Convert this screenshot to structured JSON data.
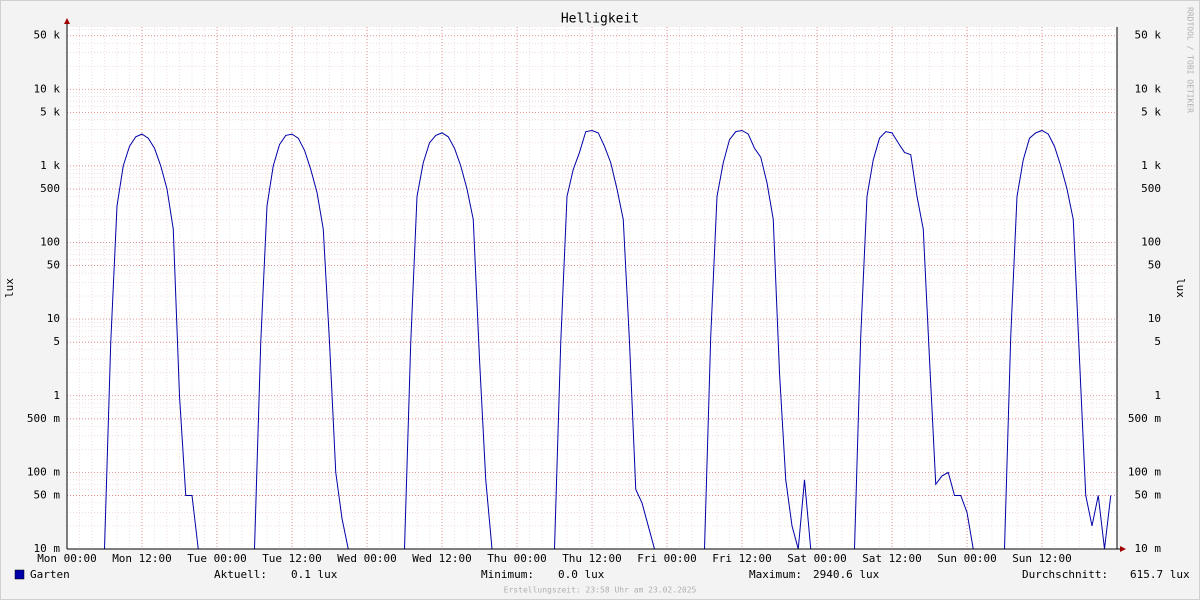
{
  "chart_data": {
    "type": "line",
    "title": "Helligkeit",
    "y_label": "lux",
    "watermark": "RRDTOOL / TOBI OETIKER",
    "footer": "Erstellungszeit: 23:58 Uhr am 23.02.2025",
    "log_y": true,
    "grid": true,
    "xlim": [
      0,
      168
    ],
    "ylim": [
      0.01,
      65000
    ],
    "xticks": [
      {
        "value": 0,
        "label": "Mon 00:00"
      },
      {
        "value": 12,
        "label": "Mon 12:00"
      },
      {
        "value": 24,
        "label": "Tue 00:00"
      },
      {
        "value": 36,
        "label": "Tue 12:00"
      },
      {
        "value": 48,
        "label": "Wed 00:00"
      },
      {
        "value": 60,
        "label": "Wed 12:00"
      },
      {
        "value": 72,
        "label": "Thu 00:00"
      },
      {
        "value": 84,
        "label": "Thu 12:00"
      },
      {
        "value": 96,
        "label": "Fri 00:00"
      },
      {
        "value": 108,
        "label": "Fri 12:00"
      },
      {
        "value": 120,
        "label": "Sat 00:00"
      },
      {
        "value": 132,
        "label": "Sat 12:00"
      },
      {
        "value": 144,
        "label": "Sun 00:00"
      },
      {
        "value": 156,
        "label": "Sun 12:00"
      }
    ],
    "yticks": [
      {
        "value": 50000,
        "label": "50 k"
      },
      {
        "value": 10000,
        "label": "10 k"
      },
      {
        "value": 5000,
        "label": "5 k"
      },
      {
        "value": 1000,
        "label": "1 k"
      },
      500,
      100,
      50,
      10,
      5,
      1,
      {
        "value": 0.5,
        "label": "500 m"
      },
      {
        "value": 0.1,
        "label": "100 m"
      },
      {
        "value": 0.05,
        "label": "50 m"
      },
      {
        "value": 0.01,
        "label": "10 m"
      }
    ],
    "x": [
      0,
      1,
      2,
      3,
      4,
      5,
      6,
      7,
      8,
      9,
      10,
      11,
      12,
      13,
      14,
      15,
      16,
      17,
      18,
      19,
      20,
      21,
      22,
      23,
      24,
      25,
      26,
      27,
      28,
      29,
      30,
      31,
      32,
      33,
      34,
      35,
      36,
      37,
      38,
      39,
      40,
      41,
      42,
      43,
      44,
      45,
      46,
      47,
      48,
      49,
      50,
      51,
      52,
      53,
      54,
      55,
      56,
      57,
      58,
      59,
      60,
      61,
      62,
      63,
      64,
      65,
      66,
      67,
      68,
      69,
      70,
      71,
      72,
      73,
      74,
      75,
      76,
      77,
      78,
      79,
      80,
      81,
      82,
      83,
      84,
      85,
      86,
      87,
      88,
      89,
      90,
      91,
      92,
      93,
      94,
      95,
      96,
      97,
      98,
      99,
      100,
      101,
      102,
      103,
      104,
      105,
      106,
      107,
      108,
      109,
      110,
      111,
      112,
      113,
      114,
      115,
      116,
      117,
      118,
      119,
      120,
      121,
      122,
      123,
      124,
      125,
      126,
      127,
      128,
      129,
      130,
      131,
      132,
      133,
      134,
      135,
      136,
      137,
      138,
      139,
      140,
      141,
      142,
      143,
      144,
      145,
      146,
      147,
      148,
      149,
      150,
      151,
      152,
      153,
      154,
      155,
      156,
      157,
      158,
      159,
      160,
      161,
      162,
      163,
      164,
      165,
      166,
      167
    ],
    "series": [
      {
        "name": "Garten",
        "color": "#0000a8",
        "values": [
          0.01,
          0.01,
          0.01,
          0.01,
          0.01,
          0.01,
          0.01,
          5,
          300,
          1000,
          1800,
          2400,
          2600,
          2300,
          1700,
          1000,
          500,
          150,
          1,
          0.05,
          0.05,
          0.01,
          0.01,
          0.01,
          0.01,
          0.01,
          0.01,
          0.01,
          0.01,
          0.01,
          0.01,
          5,
          300,
          1000,
          1900,
          2500,
          2600,
          2300,
          1600,
          900,
          450,
          150,
          5,
          0.1,
          0.025,
          0.01,
          0.01,
          0.01,
          0.01,
          0.01,
          0.01,
          0.01,
          0.01,
          0.01,
          0.01,
          5,
          400,
          1100,
          2000,
          2500,
          2700,
          2400,
          1700,
          1000,
          500,
          200,
          3,
          0.08,
          0.01,
          0.01,
          0.01,
          0.01,
          0.01,
          0.01,
          0.01,
          0.01,
          0.01,
          0.01,
          0.01,
          5,
          400,
          900,
          1500,
          2800,
          2900,
          2700,
          1800,
          1100,
          500,
          200,
          5,
          0.06,
          0.04,
          0.02,
          0.01,
          0.01,
          0.01,
          0.01,
          0.01,
          0.01,
          0.01,
          0.01,
          0.01,
          6,
          400,
          1100,
          2200,
          2800,
          2900,
          2600,
          1700,
          1300,
          600,
          200,
          2,
          0.08,
          0.02,
          0.01,
          0.08,
          0.01,
          0.01,
          0.01,
          0.01,
          0.01,
          0.01,
          0.01,
          0.01,
          6,
          400,
          1200,
          2300,
          2800,
          2700,
          2000,
          1500,
          1400,
          400,
          150,
          3,
          0.07,
          0.09,
          0.1,
          0.05,
          0.05,
          0.03,
          0.01,
          0.01,
          0.01,
          0.01,
          0.01,
          0.01,
          6,
          400,
          1200,
          2300,
          2700,
          2900,
          2600,
          1800,
          1000,
          500,
          200,
          3,
          0.05,
          0.02,
          0.05,
          0.01,
          0.05
        ]
      }
    ],
    "stats": [
      {
        "label": "Aktuell:",
        "value": "0.1 lux"
      },
      {
        "label": "Minimum:",
        "value": "0.0 lux"
      },
      {
        "label": "Maximum:",
        "value": "2940.6 lux"
      },
      {
        "label": "Durchschnitt:",
        "value": "615.7 lux"
      }
    ]
  }
}
